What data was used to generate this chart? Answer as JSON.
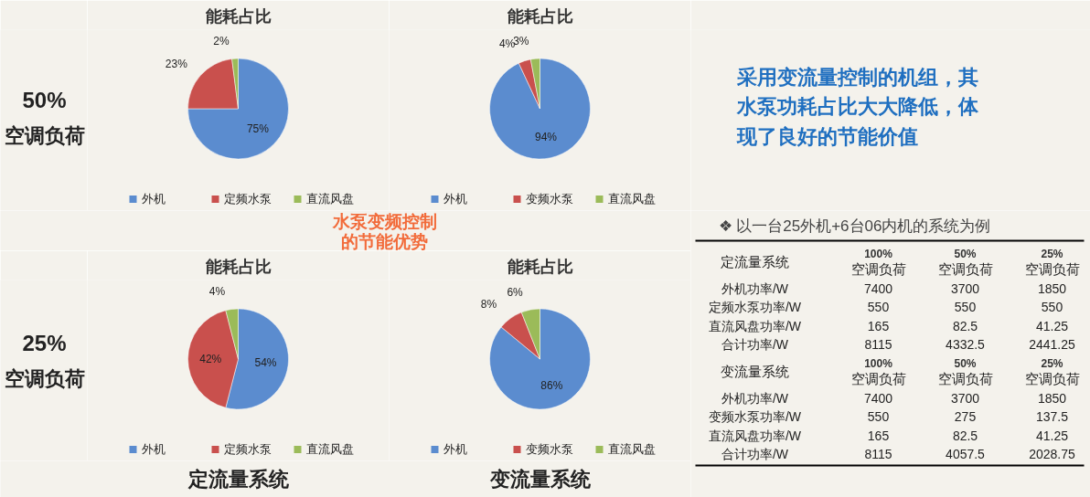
{
  "chart_data": [
    {
      "type": "pie",
      "title": "能耗占比",
      "categories": [
        "外机",
        "定频水泵",
        "直流风盘"
      ],
      "values": [
        75,
        23,
        2
      ],
      "value_labels": [
        "75%",
        "23%",
        "2%"
      ],
      "colors": [
        "#5b8ccf",
        "#c9504d",
        "#9bbb59"
      ],
      "legend": "bottom"
    },
    {
      "type": "pie",
      "title": "能耗占比",
      "categories": [
        "外机",
        "变频水泵",
        "直流风盘"
      ],
      "values": [
        94,
        4,
        3
      ],
      "value_labels": [
        "94%",
        "4%",
        "3%"
      ],
      "colors": [
        "#5b8ccf",
        "#c9504d",
        "#9bbb59"
      ],
      "legend": "bottom"
    },
    {
      "type": "pie",
      "title": "能耗占比",
      "categories": [
        "外机",
        "定频水泵",
        "直流风盘"
      ],
      "values": [
        54,
        42,
        4
      ],
      "value_labels": [
        "54%",
        "42%",
        "4%"
      ],
      "colors": [
        "#5b8ccf",
        "#c9504d",
        "#9bbb59"
      ],
      "legend": "bottom"
    },
    {
      "type": "pie",
      "title": "能耗占比",
      "categories": [
        "外机",
        "变频水泵",
        "直流风盘"
      ],
      "values": [
        86,
        8,
        6
      ],
      "value_labels": [
        "86%",
        "8%",
        "6%"
      ],
      "colors": [
        "#5b8ccf",
        "#c9504d",
        "#9bbb59"
      ],
      "legend": "bottom"
    },
    {
      "type": "other",
      "title": "❖  以一台25外机+6台06内机的系统为例",
      "annotations": [
        "50%",
        "空调负荷",
        "25%",
        "空调负荷",
        "水泵变频控制",
        "的节能优势",
        "定流量系统",
        "变流量系统",
        "采用变流量控制的机组，其",
        "水泵功耗占比大大降低，体",
        "现了良好的节能价值",
        "定流量系统",
        "100%",
        "50%",
        "25%",
        "空调负荷",
        "空调负荷",
        "空调负荷",
        "外机功率/W",
        "7400",
        "3700",
        "1850",
        "定频水泵功率/W",
        "550",
        "550",
        "550",
        "直流风盘功率/W",
        "165",
        "82.5",
        "41.25",
        "合计功率/W",
        "8115",
        "4332.5",
        "2441.25",
        "变流量系统",
        "100%",
        "50%",
        "25%",
        "空调负荷",
        "空调负荷",
        "空调负荷",
        "外机功率/W",
        "7400",
        "3700",
        "1850",
        "变频水泵功率/W",
        "550",
        "275",
        "137.5",
        "直流风盘功率/W",
        "165",
        "82.5",
        "41.25",
        "合计功率/W",
        "8115",
        "4057.5",
        "2028.75"
      ]
    }
  ]
}
